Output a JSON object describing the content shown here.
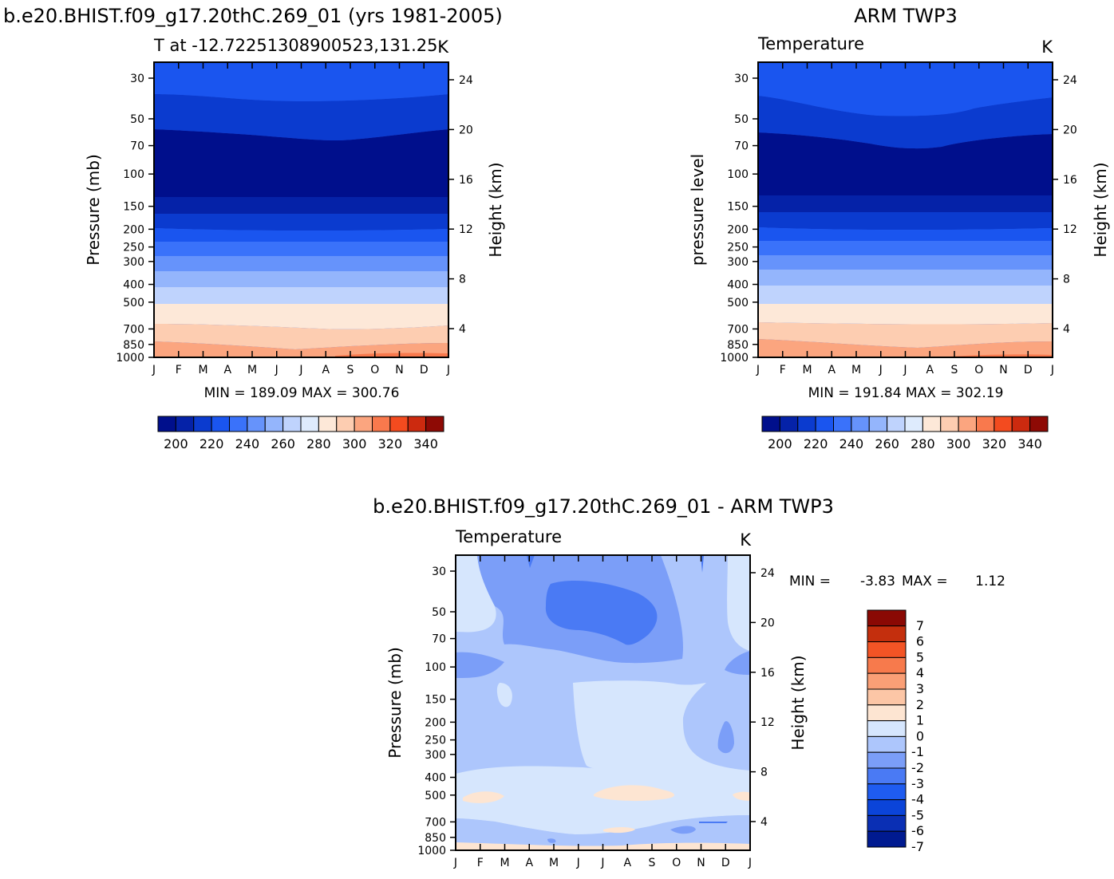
{
  "figure": {
    "main_title_left": "b.e20.BHIST.f09_g17.20thC.269_01 (yrs 1981-2005)",
    "main_title_right": "ARM TWP3",
    "main_title_bottom": "b.e20.BHIST.f09_g17.20thC.269_01 - ARM TWP3"
  },
  "chart_data": [
    {
      "id": "model",
      "type": "heatmap",
      "title": "T at -12.72251308900523,131.25",
      "units": "K",
      "ylabel": "Pressure (mb)",
      "y2label": "Height (km)",
      "x_ticks": [
        "J",
        "F",
        "M",
        "A",
        "M",
        "J",
        "J",
        "A",
        "S",
        "O",
        "N",
        "D",
        "J"
      ],
      "y_ticks": [
        30,
        50,
        70,
        100,
        150,
        200,
        250,
        300,
        400,
        500,
        700,
        850,
        1000
      ],
      "y2_ticks": [
        24,
        20,
        16,
        12,
        8,
        4
      ],
      "stats": "MIN = 189.09 MAX = 300.76",
      "colorbar_labels": [
        200,
        220,
        240,
        260,
        280,
        300,
        320,
        340
      ]
    },
    {
      "id": "obs",
      "type": "heatmap",
      "title": "Temperature",
      "units": "K",
      "ylabel": "pressure level",
      "y2label": "Height (km)",
      "x_ticks": [
        "J",
        "F",
        "M",
        "A",
        "M",
        "J",
        "J",
        "A",
        "S",
        "O",
        "N",
        "D",
        "J"
      ],
      "y_ticks": [
        30,
        50,
        70,
        100,
        150,
        200,
        250,
        300,
        400,
        500,
        700,
        850,
        1000
      ],
      "y2_ticks": [
        24,
        20,
        16,
        12,
        8,
        4
      ],
      "stats": "MIN = 191.84 MAX = 302.19",
      "colorbar_labels": [
        200,
        220,
        240,
        260,
        280,
        300,
        320,
        340
      ]
    },
    {
      "id": "diff",
      "type": "heatmap",
      "title": "Temperature",
      "units": "K",
      "ylabel": "Pressure (mb)",
      "y2label": "Height (km)",
      "x_ticks": [
        "J",
        "F",
        "M",
        "A",
        "M",
        "J",
        "J",
        "A",
        "S",
        "O",
        "N",
        "D",
        "J"
      ],
      "y_ticks": [
        30,
        50,
        70,
        100,
        150,
        200,
        250,
        300,
        400,
        500,
        700,
        850,
        1000
      ],
      "y2_ticks": [
        24,
        20,
        16,
        12,
        8,
        4
      ],
      "stats_min_label": "MIN =",
      "stats_min": "-3.83",
      "stats_max_label": "MAX =",
      "stats_max": "1.12",
      "colorbar_labels": [
        "7",
        "6",
        "5",
        "4",
        "3",
        "2",
        "1",
        "0",
        "-1",
        "-2",
        "-3",
        "-4",
        "-5",
        "-6",
        "-7"
      ]
    }
  ],
  "palette": {
    "temperature": [
      "#000f8c",
      "#0522a8",
      "#0b3bcf",
      "#1a55ef",
      "#3a72fa",
      "#6693fb",
      "#94b5fc",
      "#bfd3fd",
      "#deebfd",
      "#fde8d8",
      "#fdcdb1",
      "#fba57f",
      "#f9794d",
      "#f34b1f",
      "#cc2a0f",
      "#8e0a05"
    ],
    "difference": [
      "#001a90",
      "#0a2fb4",
      "#0b44d9",
      "#1f5cf0",
      "#4a7af4",
      "#7b9ef8",
      "#adc6fc",
      "#d6e6fd",
      "#fde5d2",
      "#fcc6a6",
      "#fa9f76",
      "#f77a4c",
      "#f35425",
      "#c42f0d",
      "#8a0904"
    ]
  }
}
